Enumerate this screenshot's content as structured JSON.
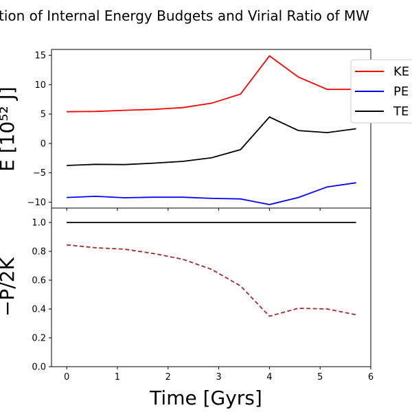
{
  "title": "tion of Internal Energy Budgets and Virial Ratio of MW",
  "chart_data": [
    {
      "type": "line",
      "ylabel": "E [10⁵² J]",
      "xlim": [
        -0.3,
        6.0
      ],
      "ylim": [
        -11,
        16
      ],
      "yticks": [
        -10,
        -5,
        0,
        5,
        10,
        15
      ],
      "xticks": [
        0,
        1,
        2,
        3,
        4,
        5,
        6
      ],
      "x": [
        0,
        0.57,
        1.14,
        1.71,
        2.29,
        2.86,
        3.43,
        4.0,
        4.57,
        5.14,
        5.71
      ],
      "series": [
        {
          "name": "KE",
          "color": "#ff0000",
          "dash": "solid",
          "values": [
            5.4,
            5.45,
            5.65,
            5.8,
            6.1,
            6.85,
            8.4,
            14.9,
            11.3,
            9.2,
            9.2
          ]
        },
        {
          "name": "PE",
          "color": "#0000ff",
          "dash": "solid",
          "values": [
            -9.2,
            -9.0,
            -9.25,
            -9.15,
            -9.15,
            -9.35,
            -9.45,
            -10.4,
            -9.2,
            -7.4,
            -6.7
          ]
        },
        {
          "name": "TE",
          "color": "#000000",
          "dash": "solid",
          "values": [
            -3.75,
            -3.55,
            -3.6,
            -3.35,
            -3.05,
            -2.45,
            -1.05,
            4.5,
            2.2,
            1.85,
            2.5
          ]
        }
      ],
      "legend": "top-right"
    },
    {
      "type": "line",
      "ylabel": "−P/2K",
      "xlabel": "Time [Gyrs]",
      "xlim": [
        -0.3,
        6.0
      ],
      "ylim": [
        0,
        1.1
      ],
      "yticks": [
        0.0,
        0.2,
        0.4,
        0.6,
        0.8,
        1.0
      ],
      "xticks": [
        0,
        1,
        2,
        3,
        4,
        5,
        6
      ],
      "x": [
        0,
        0.57,
        1.14,
        1.71,
        2.29,
        2.86,
        3.43,
        4.0,
        4.57,
        5.14,
        5.71
      ],
      "series": [
        {
          "color": "#000000",
          "dash": "solid",
          "values": [
            1.0,
            1.0,
            1.0,
            1.0,
            1.0,
            1.0,
            1.0,
            1.0,
            1.0,
            1.0,
            1.0
          ]
        },
        {
          "color": "#a52a2a",
          "dash": "dashed",
          "values": [
            0.845,
            0.825,
            0.815,
            0.785,
            0.745,
            0.675,
            0.56,
            0.35,
            0.405,
            0.4,
            0.36
          ]
        }
      ]
    }
  ]
}
